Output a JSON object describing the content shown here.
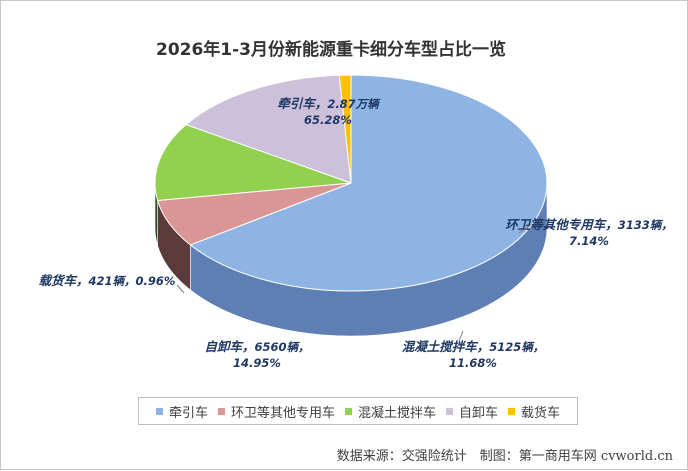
{
  "chart_data": {
    "type": "pie",
    "title": "2026年1-3月份新能源重卡细分车型占比一览",
    "slices": [
      {
        "name": "牵引车",
        "label_name": "牵引车，",
        "label_count": "2.87万辆",
        "label_pct": "65.28%",
        "value": 65.28,
        "color": "#8eb4e3",
        "side_color": "#5f7fb4"
      },
      {
        "name": "环卫等其他专用车",
        "label_name": "环卫等其他专用车，",
        "label_count": "3133辆，",
        "label_pct": "7.14%",
        "value": 7.14,
        "color": "#d99694",
        "side_color": "#5a3a3a"
      },
      {
        "name": "混凝土搅拌车",
        "label_name": "混凝土搅拌车，",
        "label_count": "5125辆，",
        "label_pct": "11.68%",
        "value": 11.68,
        "color": "#92d050",
        "side_color": "#2f4f1a"
      },
      {
        "name": "自卸车",
        "label_name": "自卸车，",
        "label_count": "6560辆，",
        "label_pct": "14.95%",
        "value": 14.95,
        "color": "#ccc0da",
        "side_color": "#6e6685"
      },
      {
        "name": "载货车",
        "label_name": "载货车，",
        "label_count": "421辆，",
        "label_pct": "0.96%",
        "value": 0.96,
        "color": "#ffc000",
        "side_color": "#9c7400"
      }
    ],
    "legend_position": "bottom"
  },
  "source_text": "数据来源：交强险统计　制图：第一商用车网 cvworld.cn"
}
